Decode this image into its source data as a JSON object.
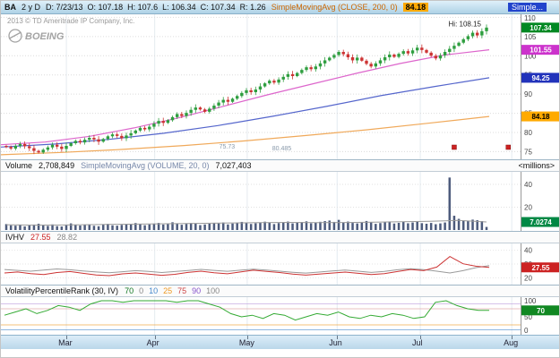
{
  "header": {
    "symbol": "BA",
    "timeframe": "2 y D",
    "quote": "D: 7/23/13  O: 107.18  H: 107.6  L: 106.34  C: 107.34  R: 1.26",
    "sma_label": "SimpleMovingAvg (CLOSE, 200, 0)",
    "sma_value": "84.18",
    "overflow_label": "Simple..."
  },
  "watermark": {
    "copyright": "2013 © TD Ameritrade IP Company, Inc.",
    "logo": "BOEING"
  },
  "volume_strip": {
    "label": "Volume",
    "value": "2,708,849",
    "sma_label": "SimpleMovingAvg (VOLUME, 20, 0)",
    "sma_value": "7,027,403",
    "units": "<millions>"
  },
  "ivhv_strip": {
    "label": "IVHV",
    "iv_value": "27.55",
    "hv_value": "28.82"
  },
  "vpr_strip": {
    "label": "VolatilityPercentileRank (30, IV)",
    "values": [
      {
        "text": "70",
        "color": "#117722"
      },
      {
        "text": "0",
        "color": "#888888"
      },
      {
        "text": "10",
        "color": "#4488cc"
      },
      {
        "text": "25",
        "color": "#ee9922"
      },
      {
        "text": "75",
        "color": "#cc4444"
      },
      {
        "text": "90",
        "color": "#8855cc"
      },
      {
        "text": "100",
        "color": "#888888"
      }
    ]
  },
  "axes": {
    "price_ticks": [
      110,
      105,
      100,
      95,
      90,
      85,
      80,
      75
    ],
    "price_range": [
      73,
      110.8
    ],
    "volume_ticks": [
      40,
      20
    ],
    "ivhv_ticks": [
      40,
      30,
      20
    ],
    "ivhv_range": [
      15,
      45
    ],
    "vpr_ticks": [
      100,
      50,
      0
    ],
    "months": [
      {
        "label": "Mar",
        "f": 0.126
      },
      {
        "label": "Apr",
        "f": 0.296
      },
      {
        "label": "May",
        "f": 0.474
      },
      {
        "label": "Jun",
        "f": 0.647
      },
      {
        "label": "Jul",
        "f": 0.807
      },
      {
        "label": "Aug",
        "f": 0.983
      }
    ]
  },
  "badges": {
    "price": [
      {
        "value": "107.34",
        "at": 107.34,
        "bg": "#008822",
        "fg": "#ffffff"
      },
      {
        "value": "101.55",
        "at": 101.55,
        "bg": "#cc33cc",
        "fg": "#ffffff"
      },
      {
        "value": "94.25",
        "at": 94.25,
        "bg": "#2233bb",
        "fg": "#ffffff"
      },
      {
        "value": "84.18",
        "at": 84.18,
        "bg": "#ffaa00",
        "fg": "#000000"
      }
    ],
    "volume": {
      "value": "7.0274",
      "at": 7.03,
      "bg": "#008844",
      "fg": "#ffffff"
    },
    "ivhv": {
      "value": "27.55",
      "at": 27.55,
      "bg": "#cc2222",
      "fg": "#ffffff"
    },
    "vpr": {
      "value": "70",
      "at": 70,
      "bg": "#118822",
      "fg": "#ffffff"
    }
  },
  "chart_data": {
    "type": "candlestick+indicators",
    "symbol": "BA",
    "price": {
      "close": [
        76.2,
        75.8,
        76.5,
        77.0,
        76.4,
        75.9,
        75.2,
        74.8,
        75.5,
        76.1,
        76.8,
        76.3,
        75.7,
        76.5,
        77.2,
        77.8,
        77.4,
        78.1,
        78.6,
        78.2,
        77.6,
        78.3,
        79.0,
        79.5,
        79.1,
        78.5,
        79.2,
        79.8,
        80.5,
        81.2,
        80.8,
        81.5,
        82.3,
        83.0,
        82.5,
        83.2,
        84.0,
        84.8,
        84.3,
        85.1,
        85.9,
        86.5,
        86.0,
        85.4,
        86.2,
        87.0,
        87.8,
        88.5,
        88.0,
        88.8,
        89.5,
        90.3,
        91.0,
        90.5,
        91.2,
        92.0,
        92.8,
        93.5,
        93.0,
        93.8,
        94.5,
        95.2,
        94.7,
        95.5,
        96.3,
        97.0,
        96.5,
        97.2,
        98.0,
        98.8,
        99.5,
        100.2,
        101.0,
        100.4,
        99.6,
        98.8,
        99.5,
        98.7,
        97.9,
        97.2,
        98.0,
        98.8,
        99.6,
        100.3,
        99.7,
        100.5,
        101.2,
        100.6,
        101.4,
        102.1,
        101.5,
        100.8,
        100.0,
        99.3,
        100.1,
        101.0,
        101.8,
        102.6,
        103.4,
        104.3,
        105.1,
        106.0,
        105.3,
        106.4,
        107.34
      ],
      "hi": 108.15,
      "hi_label": "Hi: 108.15",
      "sma50": [
        76.8,
        77.5,
        79.0,
        81.2,
        83.8,
        86.8,
        89.8,
        92.6,
        95.4,
        98.0,
        100.2,
        101.55
      ],
      "sma100": [
        76.2,
        77.0,
        78.2,
        79.8,
        81.8,
        84.2,
        86.8,
        89.6,
        92.0,
        94.25
      ],
      "sma200": [
        74.2,
        74.8,
        75.6,
        76.6,
        77.8,
        79.2,
        80.7,
        82.4,
        84.18
      ]
    },
    "volume": {
      "bars": [
        5.2,
        4.1,
        3.8,
        4.5,
        3.2,
        3.9,
        4.8,
        5.5,
        4.2,
        3.6,
        4.9,
        3.4,
        3.1,
        4.2,
        5.8,
        4.6,
        3.9,
        4.4,
        5.1,
        3.7,
        3.3,
        4.8,
        5.4,
        4.1,
        3.8,
        4.5,
        5.2,
        4.7,
        6.1,
        5.3,
        4.2,
        4.9,
        5.6,
        6.2,
        4.8,
        5.1,
        6.8,
        5.9,
        4.6,
        5.4,
        6.1,
        5.7,
        4.3,
        4.9,
        5.5,
        6.3,
        5.8,
        6.6,
        4.9,
        5.7,
        6.4,
        7.1,
        6.2,
        5.3,
        5.9,
        6.7,
        7.3,
        6.5,
        5.2,
        6.1,
        6.9,
        7.4,
        5.8,
        6.3,
        7.0,
        7.6,
        5.9,
        6.4,
        7.2,
        7.8,
        8.3,
        7.1,
        8.9,
        6.7,
        7.4,
        6.2,
        5.8,
        6.5,
        7.9,
        6.8,
        5.4,
        6.1,
        6.9,
        7.5,
        5.7,
        6.3,
        7.1,
        5.9,
        6.6,
        7.3,
        6.0,
        5.5,
        6.2,
        5.1,
        5.8,
        6.6,
        46.0,
        12.5,
        9.8,
        8.4,
        7.9,
        9.1,
        8.6,
        7.8,
        2.7
      ],
      "sma": [
        4.6,
        4.3,
        4.4,
        4.7,
        5.0,
        5.3,
        5.6,
        5.9,
        6.2,
        6.5,
        6.7,
        6.4,
        6.6,
        6.9,
        7.2,
        7.6,
        8.4,
        7.03
      ]
    },
    "ivhv": {
      "iv": [
        23.5,
        24.2,
        23.0,
        22.4,
        23.8,
        24.5,
        23.2,
        22.0,
        21.5,
        22.8,
        23.5,
        22.6,
        21.8,
        22.5,
        23.9,
        24.8,
        23.6,
        22.9,
        24.2,
        25.5,
        24.6,
        23.8,
        22.7,
        21.9,
        22.6,
        23.4,
        24.1,
        23.2,
        22.4,
        23.0,
        24.5,
        26.0,
        25.2,
        27.8,
        35.5,
        30.2,
        28.4,
        27.55
      ],
      "hv": [
        26.0,
        25.4,
        24.8,
        25.6,
        26.4,
        25.8,
        24.9,
        24.2,
        23.6,
        24.4,
        25.2,
        24.6,
        23.8,
        24.5,
        25.3,
        26.1,
        25.4,
        24.7,
        25.5,
        26.3,
        25.6,
        24.8,
        24.0,
        23.4,
        24.1,
        24.9,
        25.6,
        24.8,
        23.9,
        24.6,
        25.8,
        26.6,
        25.9,
        24.8,
        23.5,
        25.2,
        27.4,
        28.82
      ]
    },
    "vpr": {
      "series": [
        55,
        65,
        75,
        60,
        70,
        85,
        80,
        70,
        90,
        100,
        100,
        95,
        100,
        100,
        100,
        100,
        95,
        100,
        100,
        90,
        80,
        60,
        50,
        55,
        45,
        60,
        55,
        40,
        50,
        60,
        55,
        65,
        50,
        45,
        55,
        50,
        60,
        55,
        45,
        50,
        95,
        100,
        85,
        75,
        70,
        70
      ],
      "levels": [
        10,
        25,
        75,
        90
      ],
      "level_colors": [
        "#4488cc",
        "#ee9922",
        "#dd9999",
        "#bb99dd"
      ]
    },
    "annotations": [
      {
        "text": "75.73",
        "f": 0.42,
        "y": 150
      },
      {
        "text": "80.485",
        "f": 0.522,
        "y": 152
      }
    ],
    "event_markers": [
      {
        "f": 0.868
      },
      {
        "f": 0.972
      }
    ]
  },
  "colors": {
    "up": "#2e9e3f",
    "down": "#cc3333",
    "volume_bar": "#4d5b7c",
    "sma50": "#dd66cc",
    "sma100": "#5566cc",
    "sma200": "#f0a95a",
    "iv": "#cc3333",
    "hv": "#999999",
    "vpr": "#33aa33"
  }
}
